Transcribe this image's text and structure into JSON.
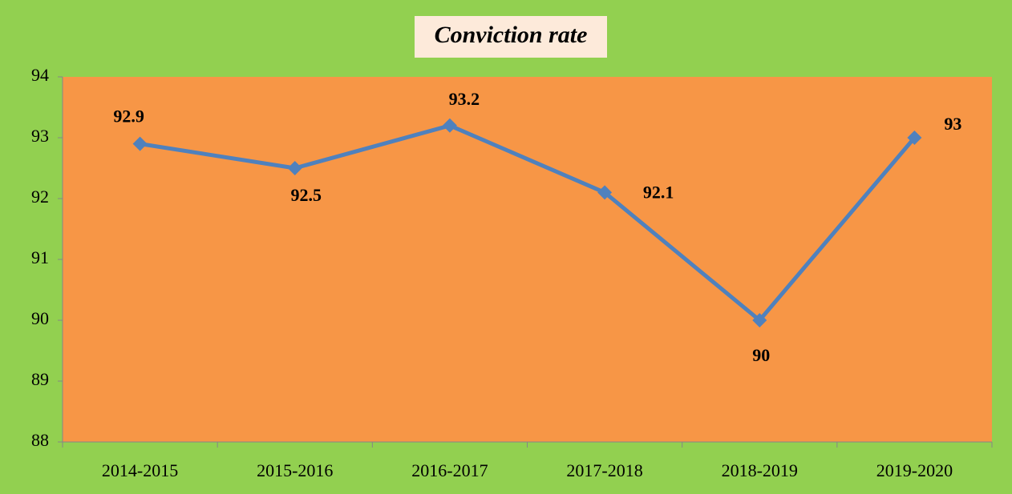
{
  "chart_data": {
    "type": "line",
    "title": "Conviction rate",
    "categories": [
      "2014-2015",
      "2015-2016",
      "2016-2017",
      "2017-2018",
      "2018-2019",
      "2019-2020"
    ],
    "series": [
      {
        "name": "Conviction rate",
        "color": "#4f81bd",
        "values": [
          92.9,
          92.5,
          93.2,
          92.1,
          90,
          93
        ]
      }
    ],
    "ylim": [
      88,
      94
    ],
    "yticks": [
      88,
      89,
      90,
      91,
      92,
      93,
      94
    ],
    "grid": false
  }
}
